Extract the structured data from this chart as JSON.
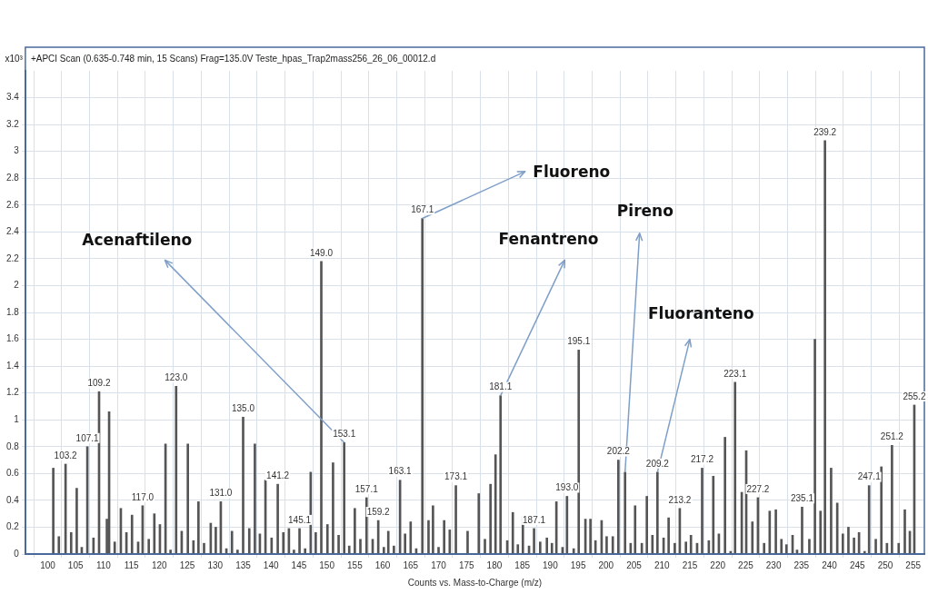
{
  "chart_data": {
    "type": "bar",
    "title": "+APCI Scan (0.635-0.748 min, 15 Scans) Frag=135.0V Teste_hpas_Trap2mass256_26_06_00012.d",
    "xlabel": "Counts vs. Mass-to-Charge (m/z)",
    "ylabel": "x10³",
    "series": [
      {
        "color": "#555555",
        "x": [
          101,
          102,
          103.2,
          104.2,
          105.2,
          106.1,
          107.1,
          108.2,
          109.2,
          110.6,
          111,
          112,
          113.1,
          114.1,
          115.1,
          116.2,
          117.0,
          118.1,
          119.1,
          120.1,
          121.1,
          122,
          123.0,
          124,
          125.1,
          126.1,
          127,
          128,
          129.2,
          130.1,
          131.0,
          132,
          133,
          134,
          135.0,
          136.1,
          137.1,
          138,
          139,
          140.1,
          141.2,
          142.2,
          143.2,
          144.1,
          145.1,
          146.1,
          147.1,
          148,
          149.0,
          150.1,
          151.1,
          152.1,
          153.1,
          154,
          155,
          156,
          157.1,
          158.2,
          159.2,
          160.2,
          161,
          162,
          163.1,
          164,
          165,
          166,
          167.1,
          168.2,
          169,
          170,
          171,
          172,
          173.1,
          175.2,
          177.2,
          178.3,
          179.3,
          180.2,
          181.1,
          182.3,
          183.3,
          184.2,
          185.1,
          186.2,
          187.1,
          188.2,
          189.4,
          190.3,
          191.1,
          192.2,
          193.0,
          194.2,
          195.1,
          196.3,
          197.2,
          198.1,
          199.2,
          200.1,
          201.2,
          202.2,
          203.4,
          204.4,
          205.2,
          206.4,
          207.3,
          208.3,
          209.2,
          210.3,
          211.2,
          212.3,
          213.2,
          214.3,
          215.2,
          216.3,
          217.2,
          218.4,
          219.2,
          220.2,
          221.3,
          222.3,
          223.1,
          224.3,
          225.1,
          226.2,
          227.2,
          228.3,
          229.3,
          230.4,
          231.4,
          232.3,
          233.4,
          234.2,
          235.1,
          236.4,
          237.4,
          238.4,
          239.2,
          240.3,
          241.4,
          242.4,
          243.4,
          244.4,
          245.3,
          246.3,
          247.1,
          248.3,
          249.3,
          250.3,
          251.2,
          252.4,
          253.5,
          254.4,
          255.2
        ],
        "values": [
          0.64,
          0.13,
          0.67,
          0.16,
          0.49,
          0.05,
          0.8,
          0.12,
          1.21,
          0.26,
          1.06,
          0.09,
          0.34,
          0.16,
          0.29,
          0.09,
          0.36,
          0.11,
          0.3,
          0.22,
          0.82,
          0.03,
          1.25,
          0.17,
          0.82,
          0.1,
          0.39,
          0.08,
          0.23,
          0.2,
          0.39,
          0.04,
          0.17,
          0.03,
          1.02,
          0.19,
          0.82,
          0.15,
          0.55,
          0.12,
          0.52,
          0.16,
          0.19,
          0.03,
          0.19,
          0.04,
          0.61,
          0.16,
          2.18,
          0.22,
          0.68,
          0.14,
          0.83,
          0.06,
          0.34,
          0.11,
          0.42,
          0.11,
          0.25,
          0.05,
          0.17,
          0.06,
          0.55,
          0.15,
          0.24,
          0.04,
          2.5,
          0.25,
          0.36,
          0.05,
          0.25,
          0.18,
          0.51,
          0.17,
          0.45,
          0.11,
          0.52,
          0.74,
          1.18,
          0.1,
          0.31,
          0.07,
          0.28,
          0.06,
          0.19,
          0.09,
          0.12,
          0.08,
          0.39,
          0.05,
          0.43,
          0.04,
          1.52,
          0.26,
          0.26,
          0.1,
          0.25,
          0.13,
          0.13,
          0.7,
          0.61,
          0.08,
          0.36,
          0.08,
          0.43,
          0.14,
          0.61,
          0.12,
          0.27,
          0.08,
          0.34,
          0.09,
          0.14,
          0.08,
          0.64,
          0.1,
          0.58,
          0.15,
          0.87,
          0.02,
          1.28,
          0.46,
          0.77,
          0.24,
          0.42,
          0.08,
          0.32,
          0.33,
          0.11,
          0.07,
          0.14,
          0.03,
          0.35,
          0.11,
          1.6,
          0.32,
          3.08,
          0.64,
          0.38,
          0.15,
          0.2,
          0.12,
          0.16,
          0.02,
          0.51,
          0.11,
          0.65,
          0.08,
          0.81,
          0.08,
          0.33,
          0.17,
          1.11
        ],
        "name": null
      }
    ],
    "xlim": [
      96,
      257
    ],
    "xticks": [
      100,
      105,
      110,
      115,
      120,
      125,
      130,
      135,
      140,
      145,
      150,
      155,
      160,
      165,
      170,
      175,
      180,
      185,
      190,
      195,
      200,
      205,
      210,
      215,
      220,
      225,
      230,
      235,
      240,
      245,
      250,
      255
    ],
    "ylim": [
      0,
      3.6
    ],
    "yticks": [
      0,
      0.2,
      0.4,
      0.6,
      0.8,
      1,
      1.2,
      1.4,
      1.6,
      1.8,
      2,
      2.2,
      2.4,
      2.6,
      2.8,
      3,
      3.2,
      3.4
    ],
    "grid": true,
    "legend": false,
    "annotations": [
      {
        "text": "Acenaftileno",
        "x": 153.1,
        "y": 0.83
      },
      {
        "text": "Fluoreno",
        "x": 167.1,
        "y": 2.5
      },
      {
        "text": "Fenantreno",
        "x": 181.1,
        "y": 1.18
      },
      {
        "text": "Pireno",
        "x": 203.4,
        "y": 0.61
      },
      {
        "text": "Fluoranteno",
        "x": 209.2,
        "y": 0.61
      },
      {
        "text": "103.2",
        "x": 103.2,
        "y": 0.67
      },
      {
        "text": "107.1",
        "x": 107.1,
        "y": 0.8
      },
      {
        "text": "109.2",
        "x": 109.2,
        "y": 1.21
      },
      {
        "text": "117.0",
        "x": 117.0,
        "y": 0.36
      },
      {
        "text": "123.0",
        "x": 123.0,
        "y": 1.25
      },
      {
        "text": "131.0",
        "x": 131.0,
        "y": 0.39
      },
      {
        "text": "135.0",
        "x": 135.0,
        "y": 1.02
      },
      {
        "text": "141.2",
        "x": 141.2,
        "y": 0.52
      },
      {
        "text": "145.1",
        "x": 145.1,
        "y": 0.19
      },
      {
        "text": "149.0",
        "x": 149.0,
        "y": 2.18
      },
      {
        "text": "153.1",
        "x": 153.1,
        "y": 0.83
      },
      {
        "text": "157.1",
        "x": 157.1,
        "y": 0.42
      },
      {
        "text": "159.2",
        "x": 159.2,
        "y": 0.25
      },
      {
        "text": "163.1",
        "x": 163.1,
        "y": 0.55
      },
      {
        "text": "167.1",
        "x": 167.1,
        "y": 2.5
      },
      {
        "text": "173.1",
        "x": 173.1,
        "y": 0.51
      },
      {
        "text": "181.1",
        "x": 181.1,
        "y": 1.18
      },
      {
        "text": "187.1",
        "x": 187.1,
        "y": 0.19
      },
      {
        "text": "193.0",
        "x": 193.0,
        "y": 0.43
      },
      {
        "text": "195.1",
        "x": 195.1,
        "y": 1.52
      },
      {
        "text": "202.2",
        "x": 202.2,
        "y": 0.7
      },
      {
        "text": "209.2",
        "x": 209.2,
        "y": 0.61
      },
      {
        "text": "213.2",
        "x": 213.2,
        "y": 0.34
      },
      {
        "text": "217.2",
        "x": 217.2,
        "y": 0.64
      },
      {
        "text": "223.1",
        "x": 223.1,
        "y": 1.28
      },
      {
        "text": "227.2",
        "x": 227.2,
        "y": 0.42
      },
      {
        "text": "235.1",
        "x": 235.1,
        "y": 0.35
      },
      {
        "text": "239.2",
        "x": 239.2,
        "y": 3.08
      },
      {
        "text": "247.1",
        "x": 247.1,
        "y": 0.51
      },
      {
        "text": "251.2",
        "x": 251.2,
        "y": 0.81
      },
      {
        "text": "255.2",
        "x": 255.2,
        "y": 1.11
      }
    ]
  }
}
